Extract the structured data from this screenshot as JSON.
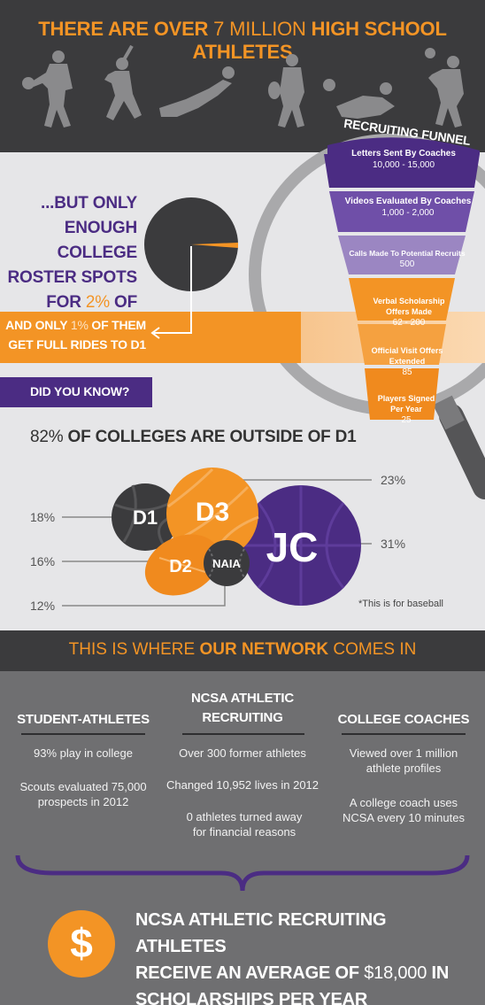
{
  "header": {
    "title_part1": "THERE ARE OVER",
    "title_part2": "7 MILLION",
    "title_part3": "HIGH SCHOOL ATHLETES"
  },
  "roster": {
    "line1": "...BUT ONLY",
    "line2": "ENOUGH COLLEGE",
    "line3": "ROSTER SPOTS",
    "line4_a": "FOR",
    "line4_b": "2%",
    "line4_c": "OF THEM",
    "share_percent": 2
  },
  "full_ride": {
    "line1_a": "AND ONLY",
    "line1_b": "1%",
    "line1_c": "OF THEM",
    "line2": "GET FULL RIDES TO D1"
  },
  "funnel": {
    "title": "RECRUITING FUNNEL",
    "stages": [
      {
        "label": "Letters Sent By Coaches",
        "value": "10,000 - 15,000"
      },
      {
        "label": "Videos Evaluated By Coaches",
        "value": "1,000 - 2,000"
      },
      {
        "label": "Calls Made To Potential Recruits",
        "value": "500"
      },
      {
        "label": "Verbal Scholarship Offers Made",
        "value": "62 - 200"
      },
      {
        "label": "Official Visit Offers Extended",
        "value": "85"
      },
      {
        "label": "Players Signed Per Year",
        "value": "25"
      }
    ]
  },
  "did_you_know": "DID YOU KNOW?",
  "colleges": {
    "pct": "82%",
    "text": "OF COLLEGES ARE OUTSIDE OF D1"
  },
  "divisions": [
    {
      "name": "D1",
      "pct": "18%"
    },
    {
      "name": "D2",
      "pct": "16%"
    },
    {
      "name": "NAIA",
      "pct": "12%"
    },
    {
      "name": "D3",
      "pct": "23%"
    },
    {
      "name": "JC",
      "pct": "31%"
    }
  ],
  "baseball_note": "*This is for baseball",
  "network": {
    "title_a": "THIS IS WHERE",
    "title_b": "OUR NETWORK",
    "title_c": "COMES IN"
  },
  "columns": {
    "left": {
      "heading": "STUDENT-ATHLETES",
      "items": [
        "93% play in college",
        "Scouts evaluated 75,000 prospects in 2012"
      ]
    },
    "middle": {
      "heading_1": "NCSA ATHLETIC",
      "heading_2": "RECRUITING",
      "items": [
        "Over 300 former athletes",
        "Changed 10,952 lives in 2012",
        "0 athletes turned away for financial reasons"
      ]
    },
    "right": {
      "heading": "COLLEGE COACHES",
      "items": [
        "Viewed over 1 million athlete profiles",
        "A college coach uses NCSA every 10 minutes"
      ]
    }
  },
  "bottom": {
    "dollar_symbol": "$",
    "line1": "NCSA ATHLETIC RECRUITING ATHLETES",
    "line2_a": "RECEIVE AN AVERAGE OF",
    "line2_b": "$18,000",
    "line2_c": "IN",
    "line3": "SCHOLARSHIPS PER YEAR"
  },
  "colors": {
    "orange": "#f39425",
    "purple": "#4b2c83",
    "dark": "#3b3b3d",
    "gray": "#6f6f71"
  }
}
